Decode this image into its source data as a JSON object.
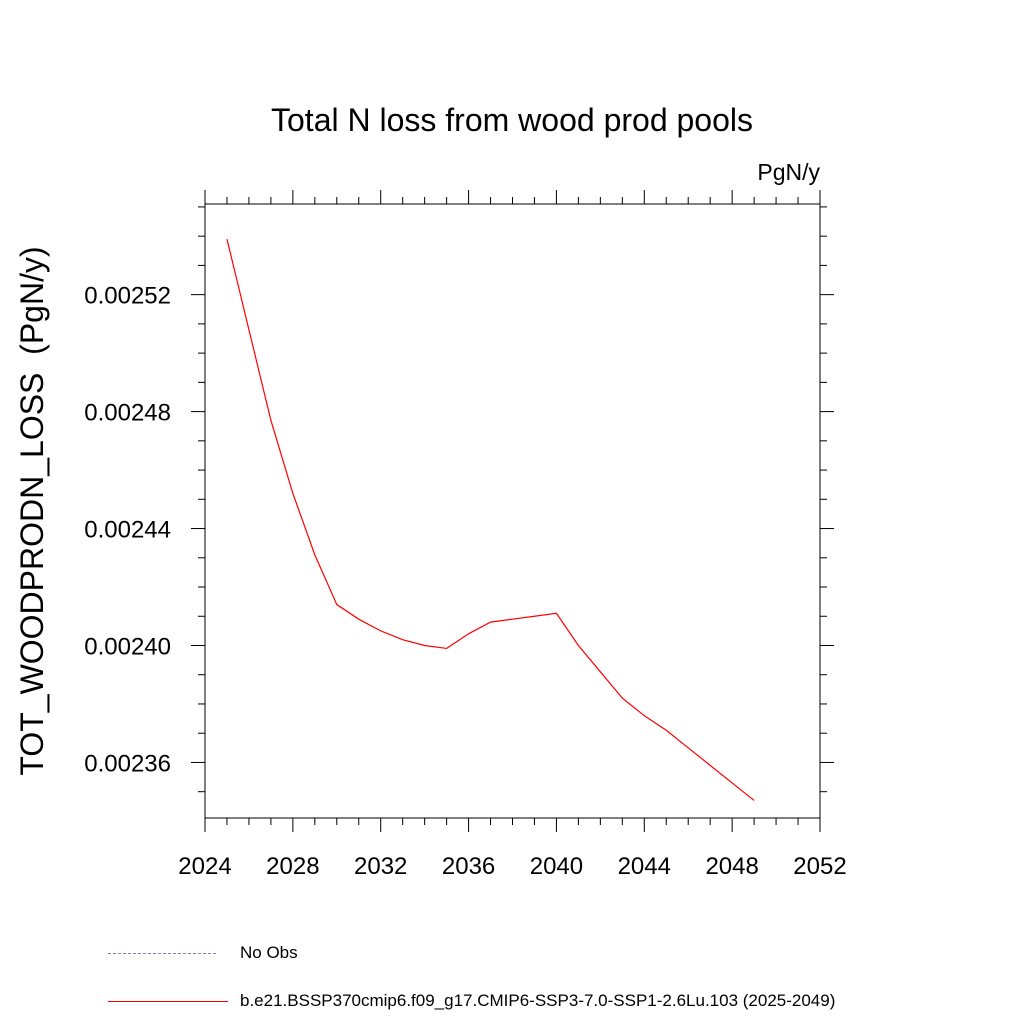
{
  "chart_data": {
    "type": "line",
    "title": "Total N loss from wood prod pools",
    "units_label": "PgN/y",
    "ylabel": "TOT_WOODPRODN_LOSS  (PgN/y)",
    "xlabel": "",
    "xlim": [
      2024,
      2052
    ],
    "ylim": [
      0.002341,
      0.002551
    ],
    "x_ticks": [
      "2024",
      "2028",
      "2032",
      "2036",
      "2040",
      "2044",
      "2048",
      "2052"
    ],
    "y_ticks": [
      "0.00236",
      "0.00240",
      "0.00244",
      "0.00248",
      "0.00252"
    ],
    "grid": false,
    "series": [
      {
        "name": "b.e21.BSSP370cmip6.f09_g17.CMIP6-SSP3-7.0-SSP1-2.6Lu.103 (2025-2049)",
        "color": "#ff0000",
        "x": [
          2025,
          2026,
          2027,
          2028,
          2029,
          2030,
          2031,
          2032,
          2033,
          2034,
          2035,
          2036,
          2037,
          2038,
          2039,
          2040,
          2041,
          2042,
          2043,
          2044,
          2045,
          2046,
          2047,
          2048,
          2049
        ],
        "y": [
          0.002539,
          0.002508,
          0.002477,
          0.002452,
          0.002431,
          0.002414,
          0.002409,
          0.002405,
          0.002402,
          0.0024,
          0.002399,
          0.002404,
          0.002408,
          0.002409,
          0.00241,
          0.002411,
          0.0024,
          0.002391,
          0.002382,
          0.002376,
          0.002371,
          0.002365,
          0.002359,
          0.002353,
          0.002347
        ]
      }
    ],
    "legend": [
      {
        "label": "No Obs",
        "color": "#7f7fbf",
        "style": "dashed"
      },
      {
        "label": "b.e21.BSSP370cmip6.f09_g17.CMIP6-SSP3-7.0-SSP1-2.6Lu.103 (2025-2049)",
        "color": "#ff0000",
        "style": "solid"
      }
    ],
    "legend_position": "bottom-left"
  }
}
